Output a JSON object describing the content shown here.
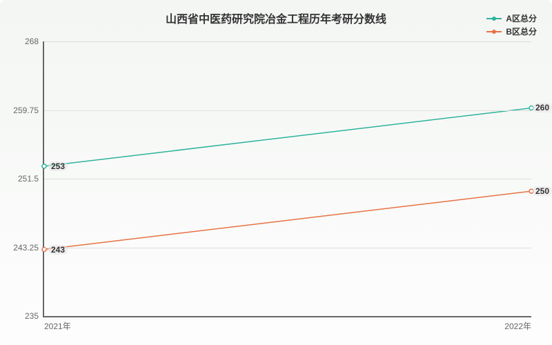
{
  "chart": {
    "type": "line",
    "title": "山西省中医药研究院冶金工程历年考研分数线",
    "title_fontsize": 16,
    "background_gradient": [
      "#f3f6f3",
      "#fdfdfd"
    ],
    "axis_color": "#666666",
    "grid_color": "#dddddd",
    "label_fontsize": 12,
    "point_label_fontsize": 12,
    "x": {
      "categories": [
        "2021年",
        "2022年"
      ]
    },
    "y": {
      "min": 235,
      "max": 268,
      "ticks": [
        235,
        243.25,
        251.5,
        259.75,
        268
      ]
    },
    "series": [
      {
        "name": "A区总分",
        "color": "#2bb39a",
        "values": [
          253,
          260
        ],
        "line_width": 1.5,
        "marker": "circle",
        "marker_size": 4
      },
      {
        "name": "B区总分",
        "color": "#e87042",
        "values": [
          243,
          250
        ],
        "line_width": 1.5,
        "marker": "circle",
        "marker_size": 4
      }
    ]
  }
}
